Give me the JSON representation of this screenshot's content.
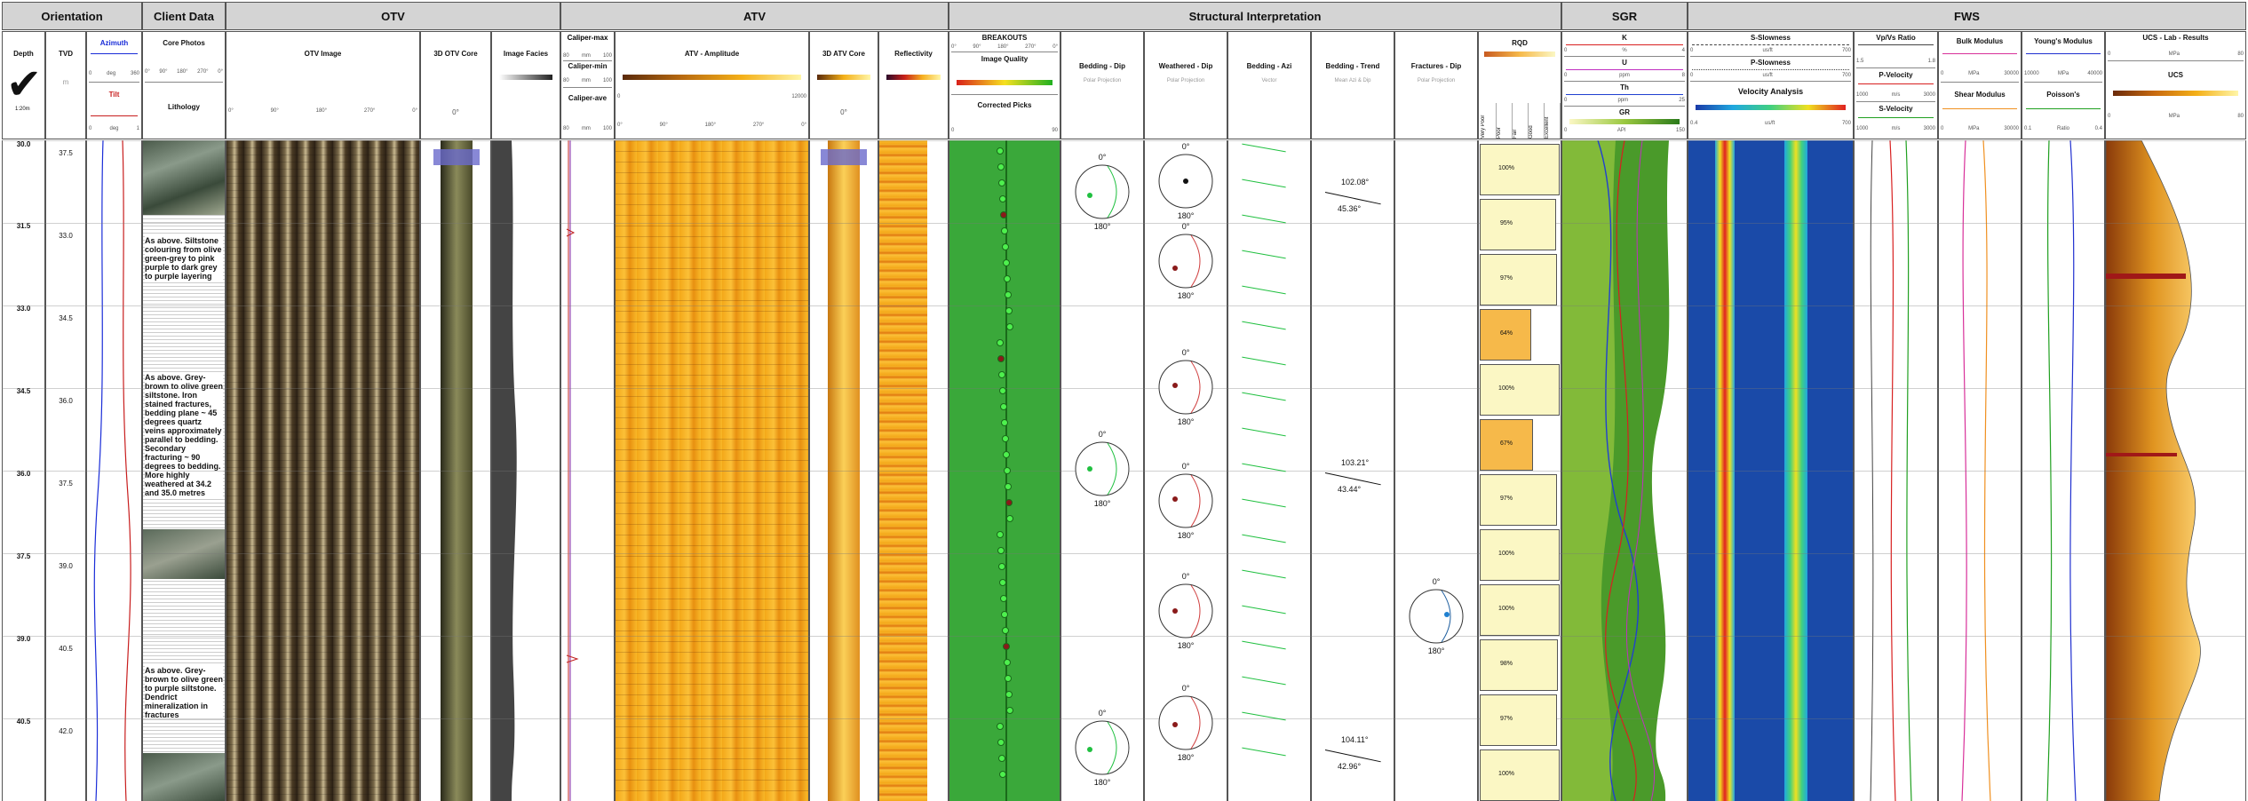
{
  "groups": {
    "orientation": "Orientation",
    "client": "Client Data",
    "otv": "OTV",
    "atv": "ATV",
    "structural": "Structural Interpretation",
    "sgr": "SGR",
    "fws": "FWS"
  },
  "headers": {
    "depth": "Depth",
    "depth_logo_text": "1:20m",
    "tvd": "TVD",
    "tvd_unit": "m",
    "azimuth": "Azimuth",
    "azimuth_scale": [
      "0",
      "deg",
      "360"
    ],
    "tilt": "Tilt",
    "tilt_scale": [
      "0",
      "deg",
      "1"
    ],
    "core_photos": "Core Photos",
    "core_scale": [
      "0°",
      "90°",
      "180°",
      "270°",
      "0°"
    ],
    "lithology": "Lithology",
    "otv_image": "OTV Image",
    "otv_scale": [
      "0°",
      "90°",
      "180°",
      "270°",
      "0°"
    ],
    "otv_core": "3D OTV Core",
    "otv_core_scale": "0°",
    "image_facies": "Image Facies",
    "caliper_max": "Caliper-max",
    "caliper_min": "Caliper-min",
    "caliper_ave": "Caliper-ave",
    "caliper_scale": [
      "80",
      "mm",
      "100"
    ],
    "atv_amp": "ATV - Amplitude",
    "atv_amp_scale": [
      "0",
      "12000"
    ],
    "atv_scale": [
      "0°",
      "90°",
      "180°",
      "270°",
      "0°"
    ],
    "atv_core": "3D ATV Core",
    "atv_core_scale": "0°",
    "reflectivity": "Reflectivity",
    "breakouts": "BREAKOUTS",
    "breakouts_scale": [
      "0°",
      "90°",
      "180°",
      "270°",
      "0°"
    ],
    "image_quality": "Image Quality",
    "corrected_picks": "Corrected  Picks",
    "corrected_scale": [
      "0",
      "90"
    ],
    "bedding_dip": "Bedding - Dip",
    "weathered_dip": "Weathered - Dip",
    "bedding_azi": "Bedding - Azi",
    "bedding_trend": "Bedding - Trend",
    "fractures_dip": "Fractures - Dip",
    "polar_projection": "Polar Projection",
    "mean_azi": "Mean Azi & Dip",
    "vector": "Vector",
    "rqd": "RQD",
    "rqd_cats": [
      "Very Poor",
      "Poor",
      "Fair",
      "Good",
      "Excellent"
    ],
    "k": "K",
    "k_scale": [
      "0",
      "%",
      "4"
    ],
    "u": "U",
    "u_scale": [
      "0",
      "ppm",
      "8"
    ],
    "th": "Th",
    "th_scale": [
      "0",
      "ppm",
      "25"
    ],
    "gr": "GR",
    "gr_scale": [
      "0",
      "API",
      "150"
    ],
    "s_slowness": "S-Slowness",
    "s_scale": [
      "0",
      "us/ft",
      "700"
    ],
    "p_slowness": "P-Slowness",
    "p_scale": [
      "0",
      "us/ft",
      "700"
    ],
    "velocity_analysis": "Velocity Analysis",
    "va_scale": [
      "0.4",
      "us/ft",
      "700"
    ],
    "vpvs": "Vp/Vs Ratio",
    "vpvs_scale": [
      "1.5",
      "1.8"
    ],
    "p_velocity": "P-Velocity",
    "pv_scale": [
      "1000",
      "m/s",
      "3000"
    ],
    "s_velocity": "S-Velocity",
    "sv_scale": [
      "1000",
      "m/s",
      "3000"
    ],
    "bulk": "Bulk Modulus",
    "bulk_scale": [
      "0",
      "MPa",
      "30000"
    ],
    "shear": "Shear Modulus",
    "shear_scale": [
      "0",
      "MPa",
      "30000"
    ],
    "youngs": "Young's Modulus",
    "youngs_scale": [
      "10000",
      "MPa",
      "40000"
    ],
    "poisson": "Poisson's",
    "poisson_scale": [
      "0.1",
      "Ratio",
      "0.4"
    ],
    "ucs_lab": "UCS - Lab - Results",
    "ucs_lab_scale": [
      "0",
      "MPa",
      "80"
    ],
    "ucs": "UCS",
    "ucs_scale": [
      "0",
      "MPa",
      "80"
    ]
  },
  "depths": [
    "30.0",
    "31.5",
    "33.0",
    "34.5",
    "36.0",
    "37.5",
    "39.0",
    "40.5"
  ],
  "tvds": [
    "37.5",
    "33.0",
    "34.5",
    "36.0",
    "37.5",
    "39.0",
    "40.5",
    "42.0"
  ],
  "lithology": [
    "As above. Siltstone colouring from olive green-grey to pink purple to dark grey to purple layering",
    "As above. Grey-brown to olive green siltstone. Iron stained fractures, bedding plane ~ 45 degrees quartz veins approximately parallel to bedding. Secondary fracturing ~ 90 degrees to bedding. More highly weathered at 34.2 and 35.0 metres",
    "As above. Grey-brown to olive green to purple siltstone. Dendrict mineralization in fractures"
  ],
  "stereo": {
    "top": "0°",
    "bottom": "180°"
  },
  "trends": [
    {
      "azi": "102.08°",
      "dip": "45.36°"
    },
    {
      "azi": "103.21°",
      "dip": "43.44°"
    },
    {
      "azi": "104.11°",
      "dip": "42.96°"
    }
  ],
  "rqd_values": [
    "100%",
    "95%",
    "97%",
    "64%",
    "100%",
    "67%",
    "97%",
    "100%",
    "100%",
    "98%",
    "97%",
    "100%"
  ],
  "rqd_fraction": [
    1.0,
    0.95,
    0.97,
    0.64,
    1.0,
    0.67,
    0.97,
    1.0,
    1.0,
    0.98,
    0.97,
    1.0
  ],
  "colors": {
    "header_bg": "#d4d4d4",
    "breakouts_bg": "#3aa83a",
    "rqd_low": "#f6b94a",
    "rqd_high": "#fbf7c4",
    "ucs": "#e09420"
  }
}
